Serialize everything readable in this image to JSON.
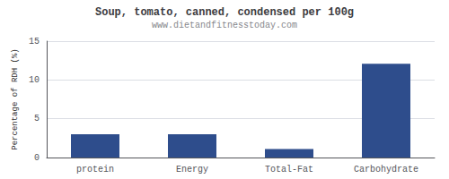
{
  "chart_data": {
    "type": "bar",
    "title": "Soup, tomato, canned, condensed per 100g",
    "subtitle": "www.dietandfitnesstoday.com",
    "categories": [
      "protein",
      "Energy",
      "Total-Fat",
      "Carbohydrate"
    ],
    "values": [
      3.0,
      3.0,
      1.1,
      12.1
    ],
    "color": "#2e4d8c",
    "ylabel": "Percentage of RDH (%)",
    "ylim": [
      0,
      15
    ],
    "yticks": [
      0,
      5,
      10,
      15
    ],
    "grid": true
  }
}
